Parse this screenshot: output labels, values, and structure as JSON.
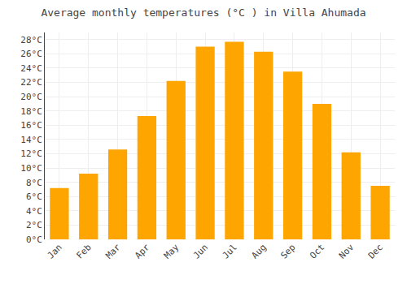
{
  "chart_data": {
    "type": "bar",
    "title": "Average monthly temperatures (°C ) in Villa Ahumada",
    "categories": [
      "Jan",
      "Feb",
      "Mar",
      "Apr",
      "May",
      "Jun",
      "Jul",
      "Aug",
      "Sep",
      "Oct",
      "Nov",
      "Dec"
    ],
    "values": [
      7.2,
      9.2,
      12.6,
      17.3,
      22.2,
      27.0,
      27.7,
      26.3,
      23.5,
      19.0,
      12.2,
      7.5
    ],
    "color": "#FFA500",
    "ylim": [
      0,
      29
    ],
    "yticks": [
      {
        "value": 0,
        "label": "0°C"
      },
      {
        "value": 2,
        "label": "2°C"
      },
      {
        "value": 4,
        "label": "4°C"
      },
      {
        "value": 6,
        "label": "6°C"
      },
      {
        "value": 8,
        "label": "8°C"
      },
      {
        "value": 10,
        "label": "10°C"
      },
      {
        "value": 12,
        "label": "12°C"
      },
      {
        "value": 14,
        "label": "14°C"
      },
      {
        "value": 16,
        "label": "16°C"
      },
      {
        "value": 18,
        "label": "18°C"
      },
      {
        "value": 20,
        "label": "20°C"
      },
      {
        "value": 22,
        "label": "22°C"
      },
      {
        "value": 24,
        "label": "24°C"
      },
      {
        "value": 26,
        "label": "26°C"
      },
      {
        "value": 28,
        "label": "28°C"
      }
    ],
    "grid": true
  }
}
